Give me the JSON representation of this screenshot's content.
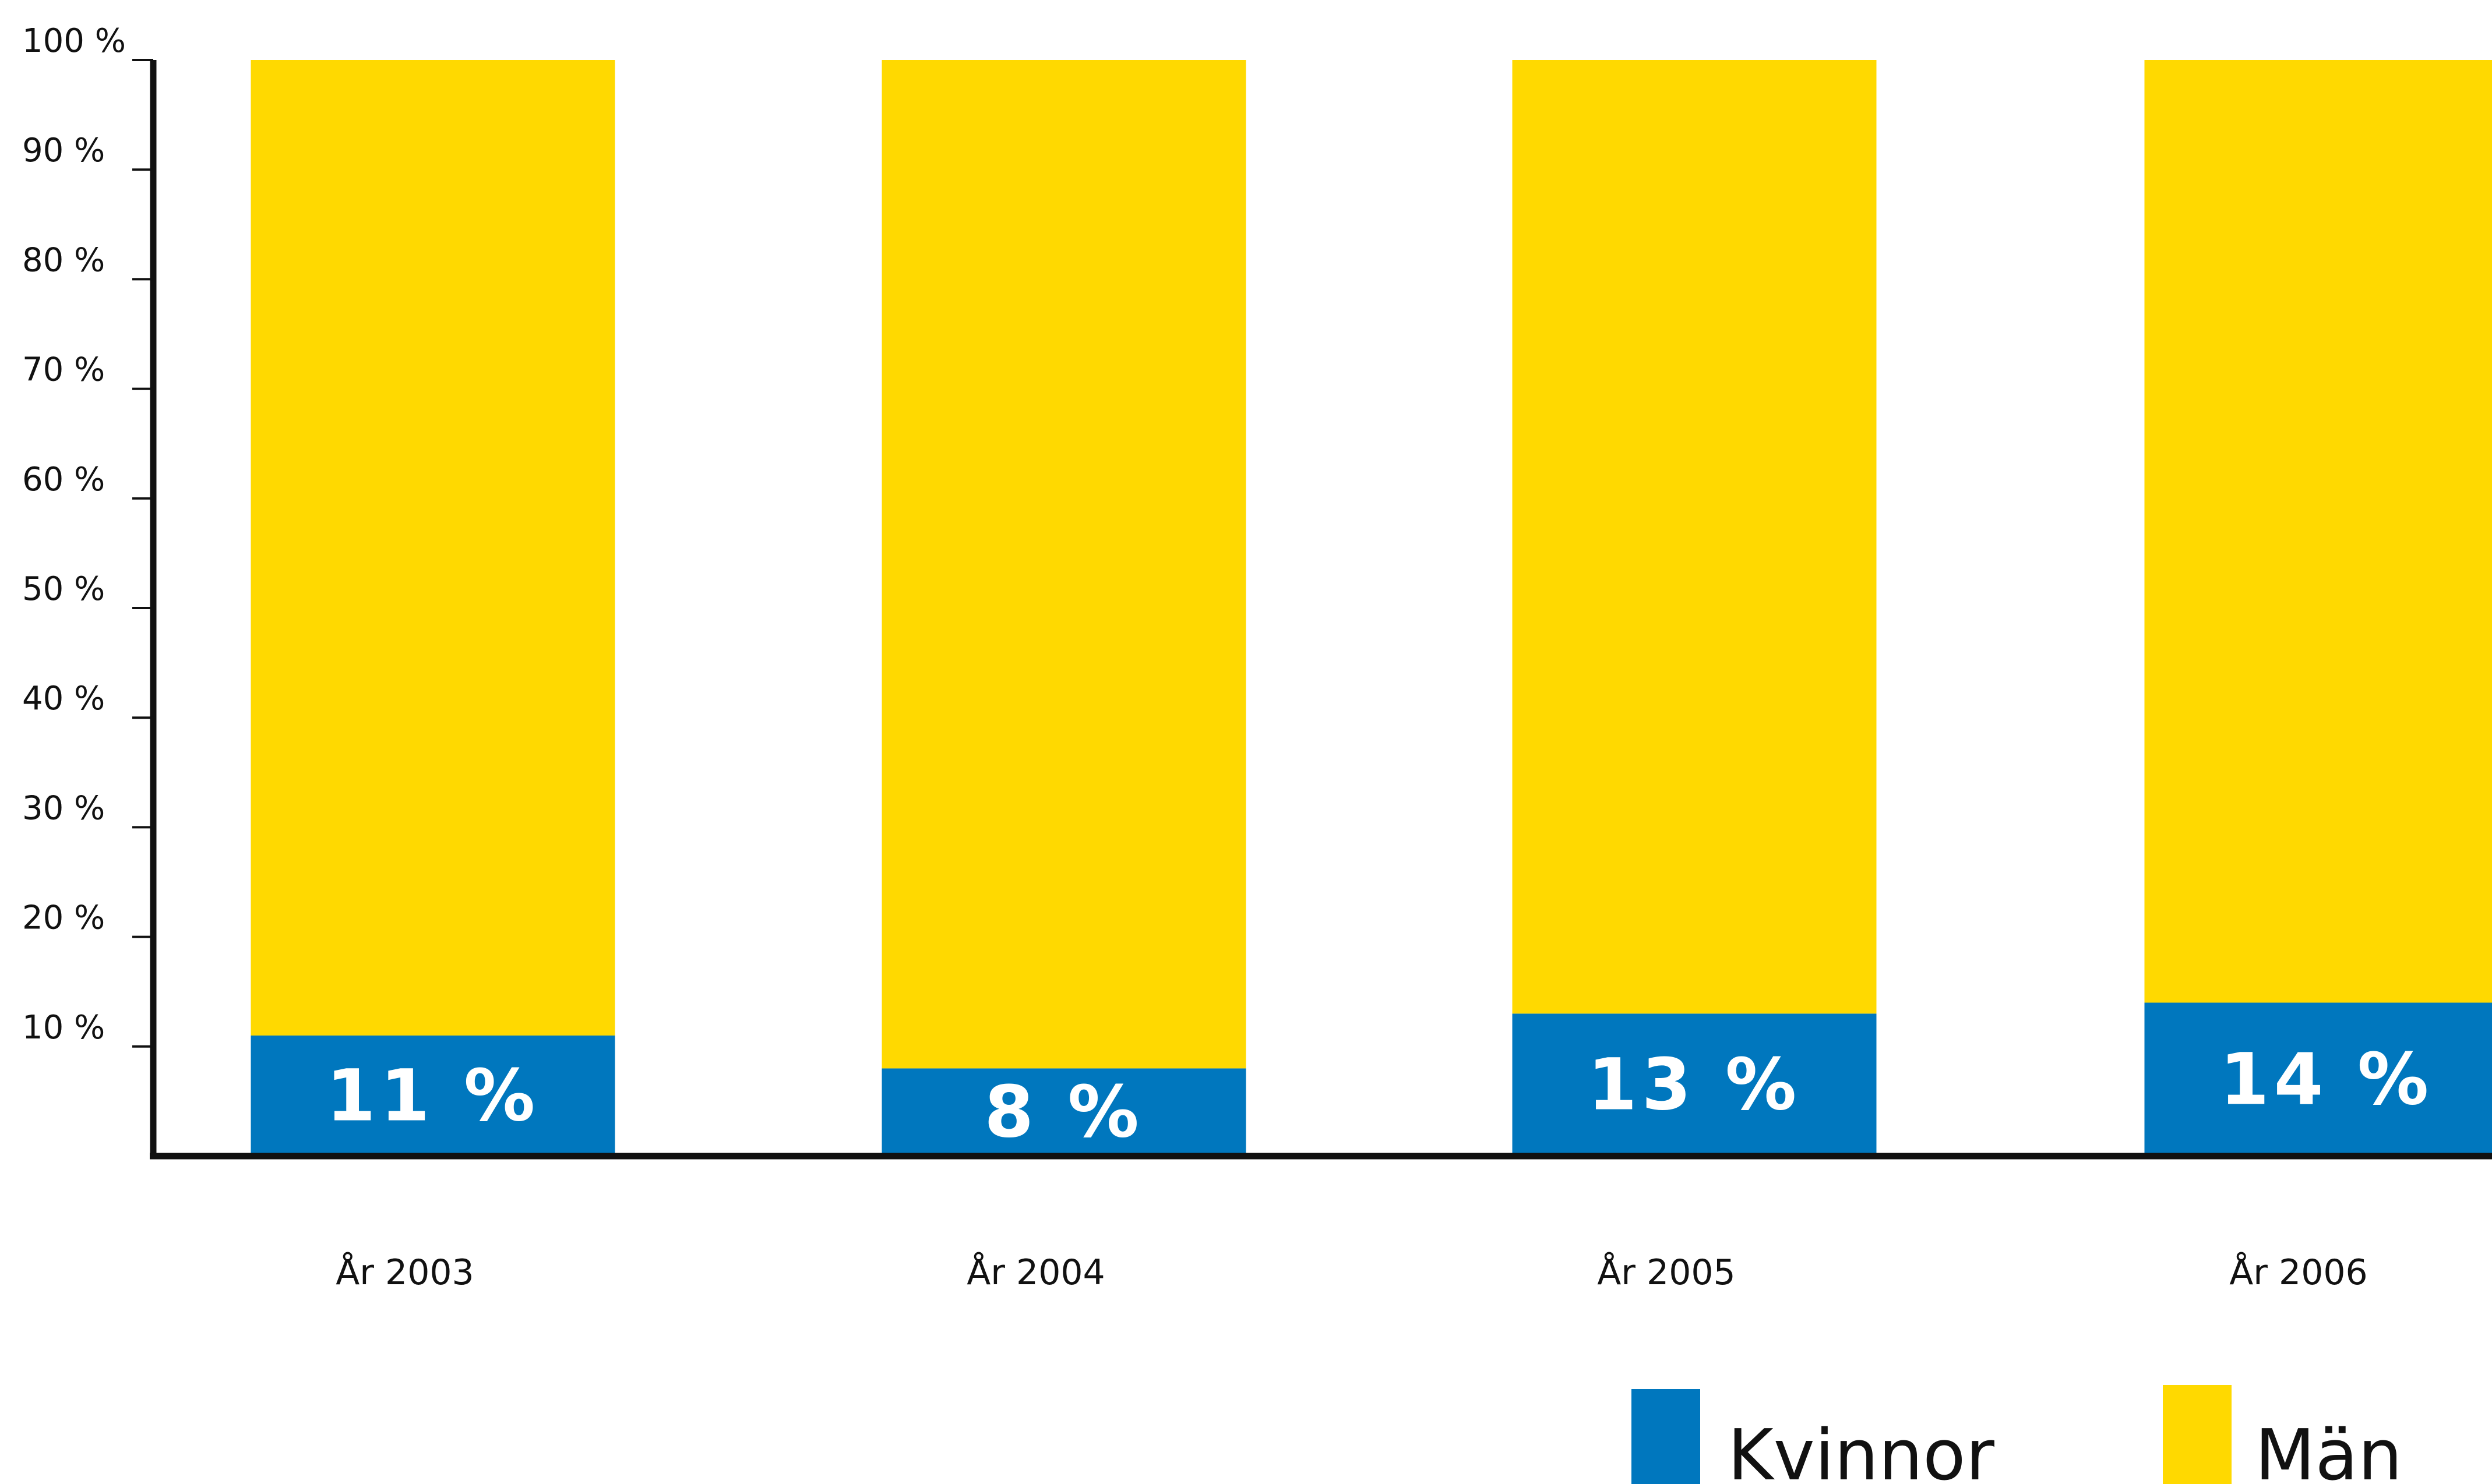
{
  "chart_data": {
    "type": "bar",
    "stacked": true,
    "categories": [
      "År 2003",
      "År 2004",
      "År 2005",
      "År 2006"
    ],
    "series": [
      {
        "name": "Kvinnor",
        "values": [
          11,
          8,
          13,
          14
        ],
        "color": "#0077BE",
        "labels": [
          "11 %",
          "8 %",
          "13 %",
          "14 %"
        ]
      },
      {
        "name": "Män",
        "values": [
          89,
          92,
          87,
          86
        ],
        "color": "#FFD900"
      }
    ],
    "yticks": [
      {
        "value": 10,
        "label": "10 %"
      },
      {
        "value": 20,
        "label": "20 %"
      },
      {
        "value": 30,
        "label": "30 %"
      },
      {
        "value": 40,
        "label": "40 %"
      },
      {
        "value": 50,
        "label": "50 %"
      },
      {
        "value": 60,
        "label": "60 %"
      },
      {
        "value": 70,
        "label": "70 %"
      },
      {
        "value": 80,
        "label": "80 %"
      },
      {
        "value": 90,
        "label": "90 %"
      },
      {
        "value": 100,
        "label": "100 %"
      }
    ],
    "ylim": [
      0,
      100
    ],
    "grid": false,
    "legend_position": "bottom-right",
    "axis_color": "#111111"
  }
}
